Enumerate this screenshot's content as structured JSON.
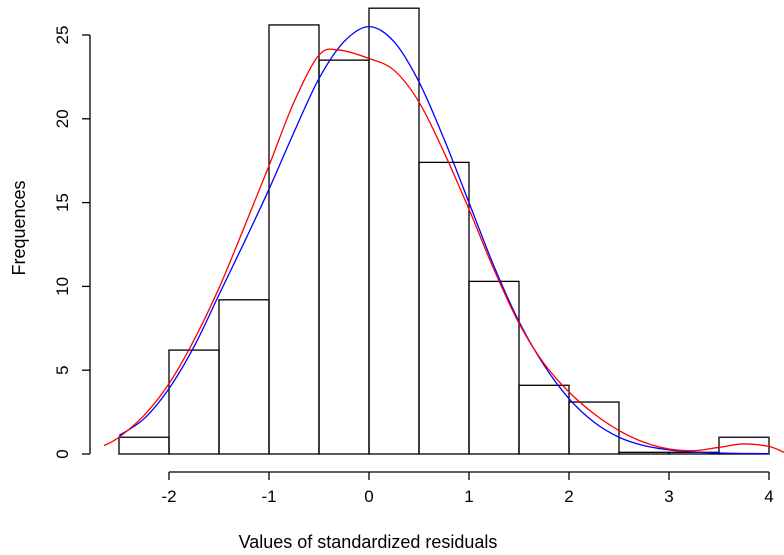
{
  "chart_data": {
    "type": "histogram",
    "title": "",
    "xlabel": "Values of standardized residuals",
    "ylabel": "Frequences",
    "xlim": [
      -2.65,
      4.05
    ],
    "ylim": [
      0,
      27
    ],
    "x_ticks": [
      -2,
      -1,
      0,
      1,
      2,
      3,
      4
    ],
    "y_ticks": [
      0,
      5,
      10,
      15,
      20,
      25
    ],
    "bins": [
      {
        "from": -2.5,
        "to": -2.0,
        "value": 1
      },
      {
        "from": -2.0,
        "to": -1.5,
        "value": 6.2
      },
      {
        "from": -1.5,
        "to": -1.0,
        "value": 9.2
      },
      {
        "from": -1.0,
        "to": -0.5,
        "value": 25.6
      },
      {
        "from": -0.5,
        "to": 0.0,
        "value": 23.5
      },
      {
        "from": 0.0,
        "to": 0.5,
        "value": 26.6
      },
      {
        "from": 0.5,
        "to": 1.0,
        "value": 17.4
      },
      {
        "from": 1.0,
        "to": 1.5,
        "value": 10.3
      },
      {
        "from": 1.5,
        "to": 2.0,
        "value": 4.1
      },
      {
        "from": 2.0,
        "to": 2.5,
        "value": 3.1
      },
      {
        "from": 2.5,
        "to": 3.0,
        "value": 0.1
      },
      {
        "from": 3.0,
        "to": 3.5,
        "value": 0.1
      },
      {
        "from": 3.5,
        "to": 4.0,
        "value": 1
      }
    ],
    "series": [
      {
        "color": "#0000ff",
        "x": [
          -2.5,
          -2.25,
          -2.0,
          -1.75,
          -1.5,
          -1.25,
          -1.0,
          -0.75,
          -0.5,
          -0.25,
          0.0,
          0.25,
          0.5,
          0.75,
          1.0,
          1.25,
          1.5,
          1.75,
          2.0,
          2.25,
          2.5,
          2.75,
          3.0,
          3.25,
          3.5,
          3.75,
          4.0
        ],
        "y": [
          1.1,
          2.1,
          3.9,
          6.4,
          9.5,
          12.6,
          15.8,
          19.2,
          22.4,
          24.6,
          25.5,
          24.6,
          22.2,
          18.8,
          15.0,
          11.2,
          7.9,
          5.3,
          3.3,
          1.9,
          1.0,
          0.5,
          0.25,
          0.12,
          0.06,
          0.03,
          0.02
        ]
      },
      {
        "color": "#ff0000",
        "x": [
          -2.65,
          -2.5,
          -2.25,
          -2.0,
          -1.75,
          -1.5,
          -1.25,
          -1.0,
          -0.75,
          -0.5,
          -0.3,
          0.0,
          0.25,
          0.5,
          0.75,
          1.0,
          1.25,
          1.5,
          1.75,
          2.0,
          2.25,
          2.5,
          2.75,
          3.0,
          3.25,
          3.5,
          3.75,
          4.0,
          4.15
        ],
        "y": [
          0.5,
          1.0,
          2.3,
          4.2,
          6.8,
          9.9,
          13.5,
          17.2,
          21.0,
          23.8,
          24.1,
          23.6,
          22.9,
          21.0,
          18.0,
          14.6,
          11.0,
          7.8,
          5.4,
          3.7,
          2.4,
          1.4,
          0.7,
          0.3,
          0.2,
          0.4,
          0.6,
          0.45,
          0.1
        ]
      }
    ]
  }
}
